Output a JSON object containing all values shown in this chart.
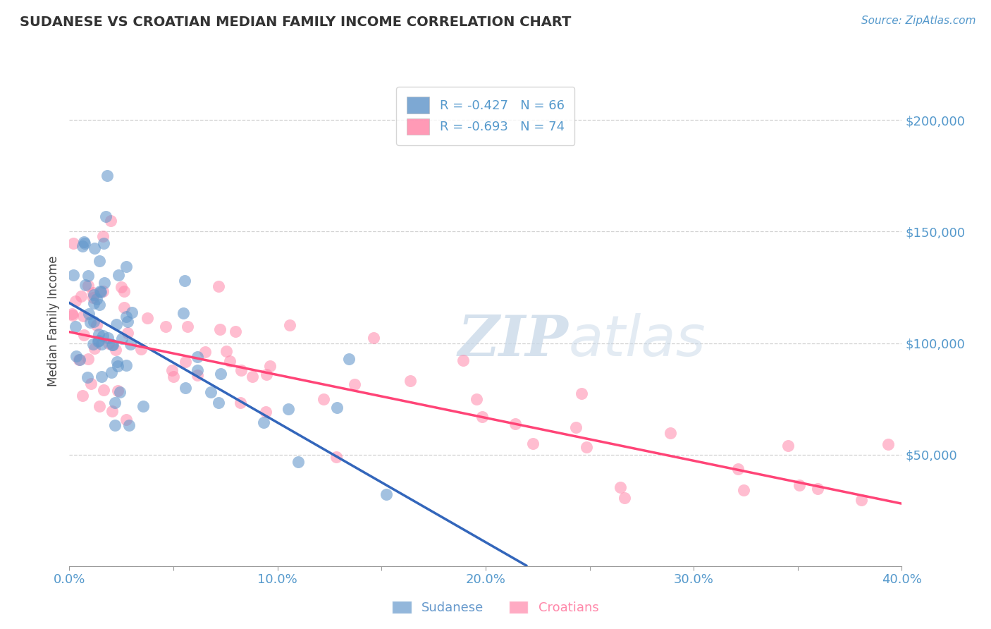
{
  "title": "SUDANESE VS CROATIAN MEDIAN FAMILY INCOME CORRELATION CHART",
  "source": "Source: ZipAtlas.com",
  "ylabel": "Median Family Income",
  "xmin": 0.0,
  "xmax": 0.4,
  "ymin": 0,
  "ymax": 220000,
  "yticks": [
    0,
    50000,
    100000,
    150000,
    200000
  ],
  "ytick_labels": [
    "",
    "$50,000",
    "$100,000",
    "$150,000",
    "$200,000"
  ],
  "xticks": [
    0.0,
    0.05,
    0.1,
    0.15,
    0.2,
    0.25,
    0.3,
    0.35,
    0.4
  ],
  "xtick_labels": [
    "0.0%",
    "",
    "10.0%",
    "",
    "20.0%",
    "",
    "30.0%",
    "",
    "40.0%"
  ],
  "sudanese_color": "#6699CC",
  "croatian_color": "#FF88AA",
  "sudanese_line_color": "#3366BB",
  "croatian_line_color": "#FF4477",
  "legend_sudanese": "R = -0.427   N = 66",
  "legend_croatian": "R = -0.693   N = 74",
  "legend_label_sudanese": "Sudanese",
  "legend_label_croatian": "Croatians",
  "watermark": "ZIPatlas",
  "title_color": "#333333",
  "axis_color": "#5599CC",
  "grid_color": "#CCCCCC",
  "sud_line_x0": 0.0,
  "sud_line_y0": 118000,
  "sud_line_x1": 0.22,
  "sud_line_y1": 0,
  "cro_line_x0": 0.0,
  "cro_line_y0": 105000,
  "cro_line_x1": 0.4,
  "cro_line_y1": 28000
}
